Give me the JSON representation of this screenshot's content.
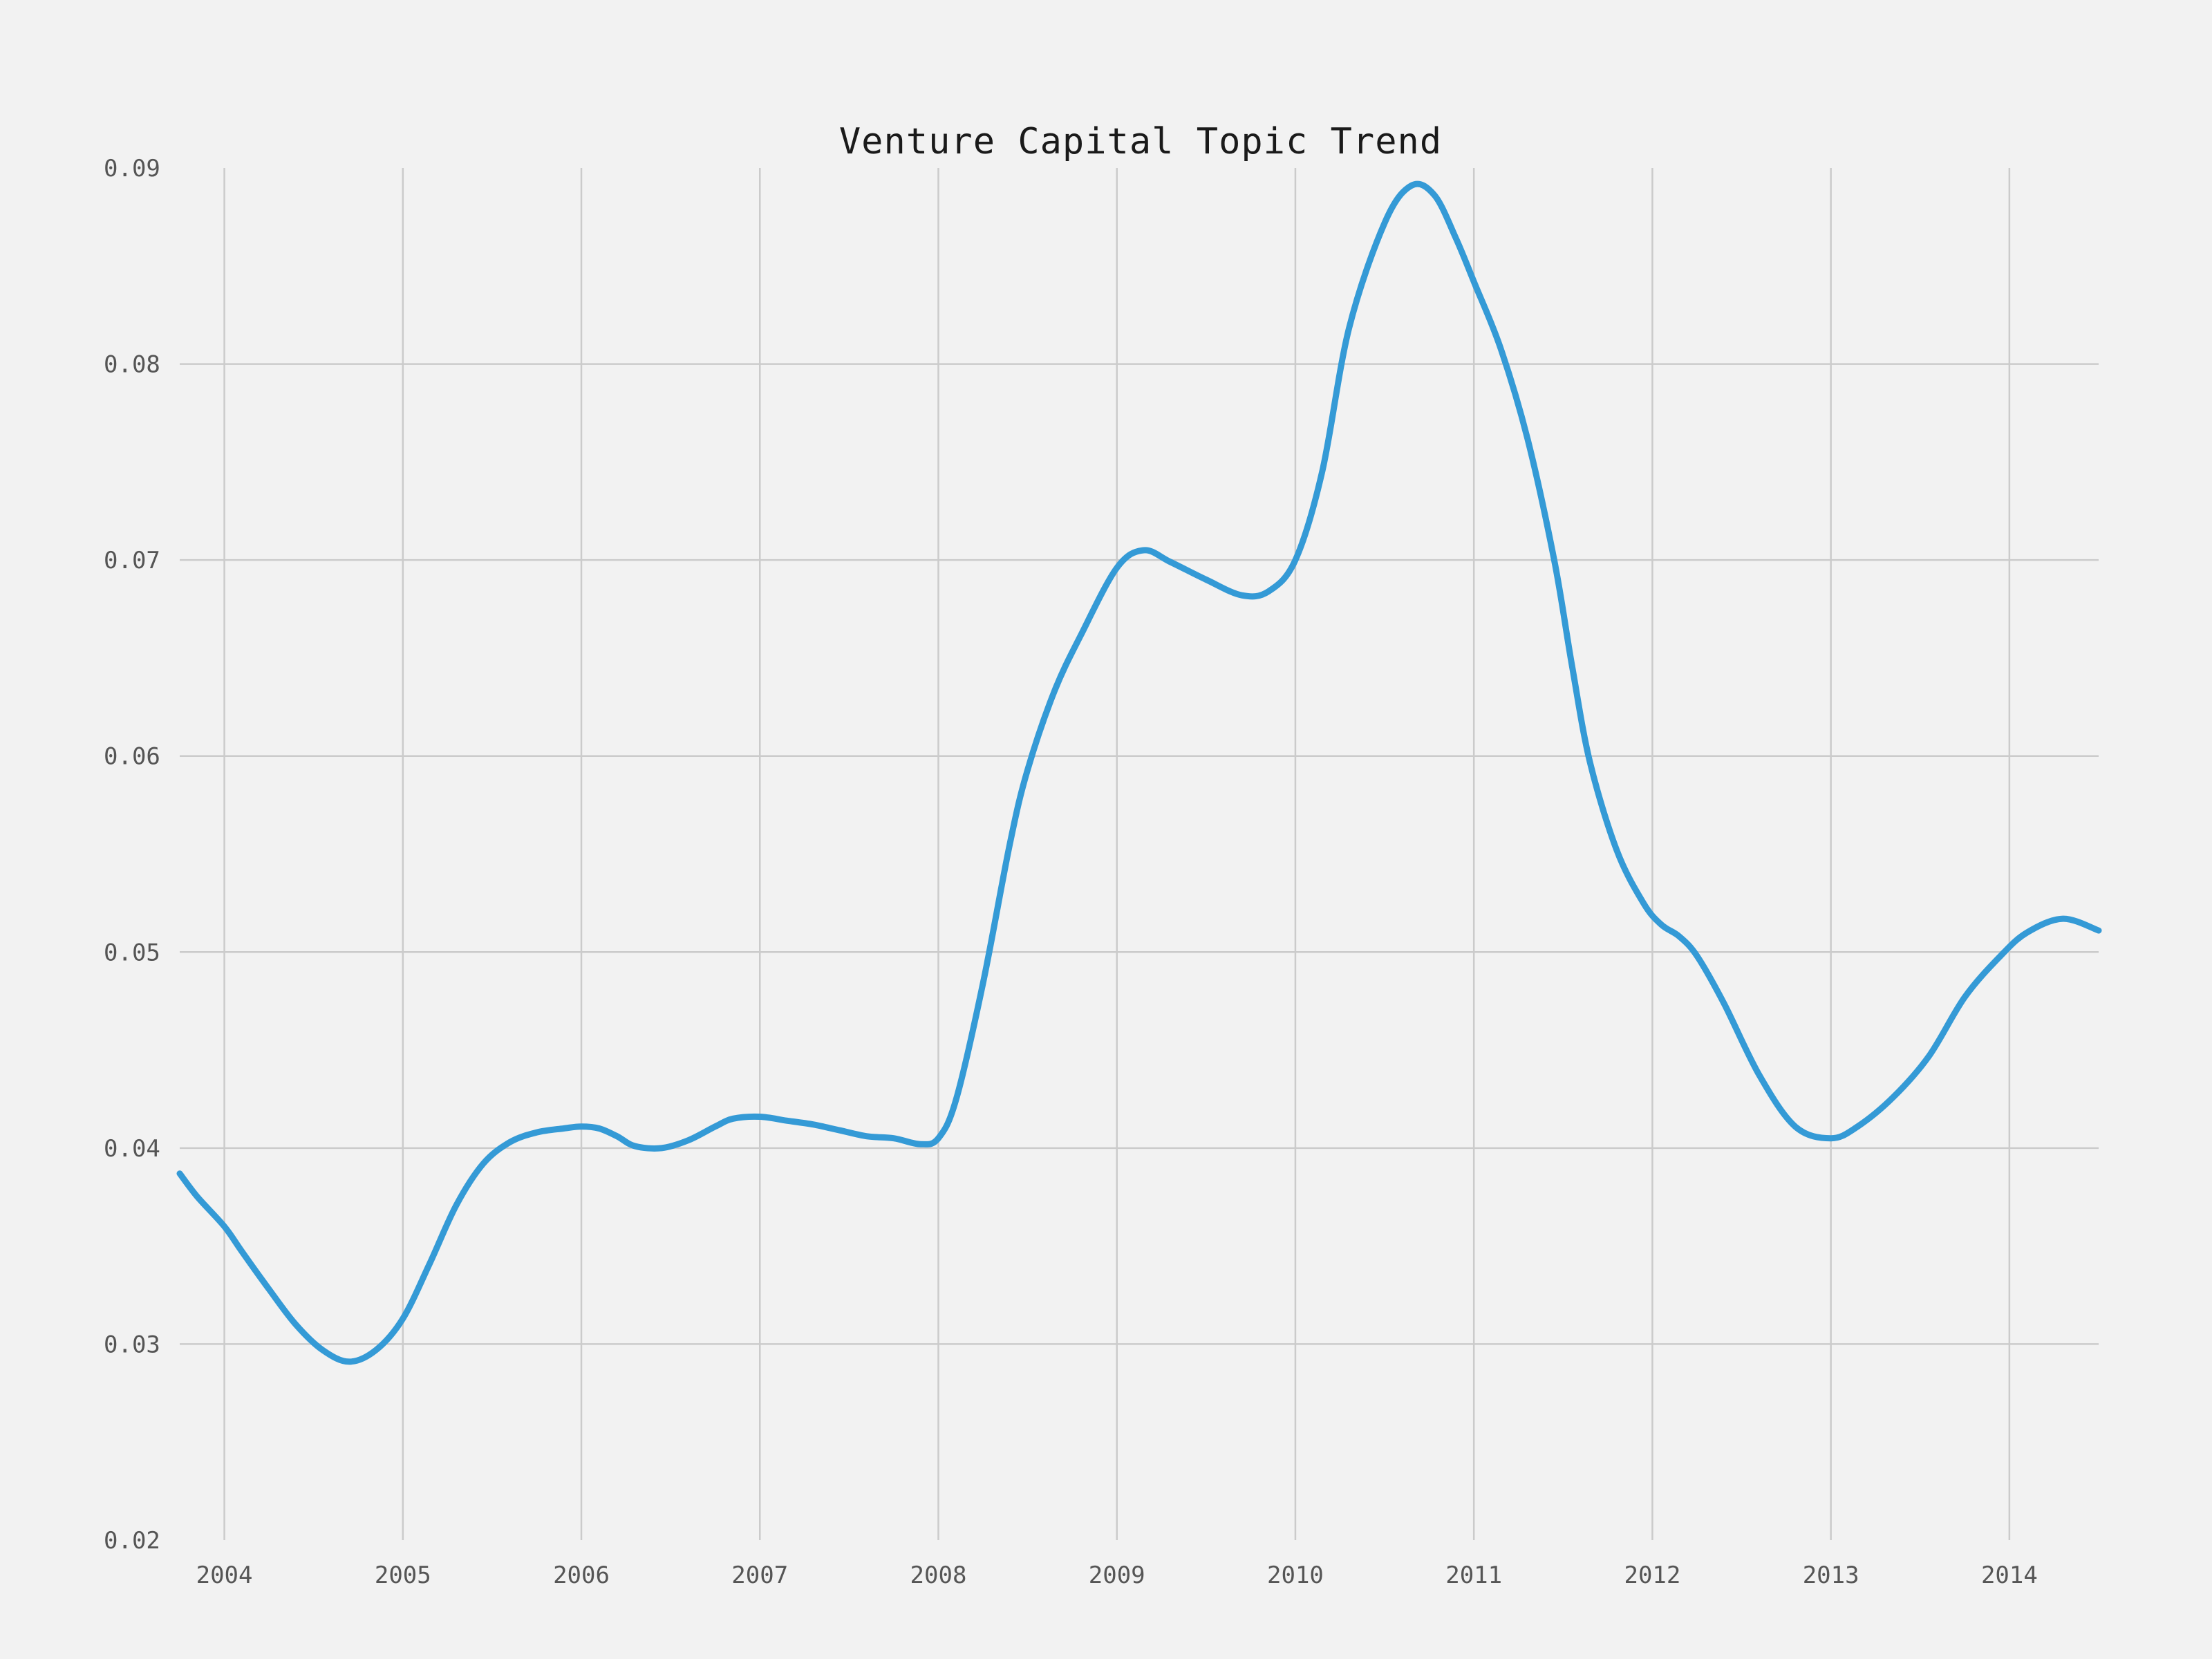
{
  "chart_data": {
    "type": "line",
    "title": "Venture Capital Topic Trend",
    "xlabel": "",
    "ylabel": "",
    "xlim": [
      2003.75,
      2014.5
    ],
    "ylim": [
      0.02,
      0.09
    ],
    "x_ticks": [
      "2004",
      "2005",
      "2006",
      "2007",
      "2008",
      "2009",
      "2010",
      "2011",
      "2012",
      "2013",
      "2014"
    ],
    "y_ticks": [
      "0.02",
      "0.03",
      "0.04",
      "0.05",
      "0.06",
      "0.07",
      "0.08",
      "0.09"
    ],
    "grid": true,
    "legend": "none",
    "line_color": "#349ad6",
    "grid_color": "#cbcbcb",
    "background_color": "#f2f2f2",
    "series": [
      {
        "x": [
          2003.75,
          2003.85,
          2004.0,
          2004.1,
          2004.25,
          2004.4,
          2004.55,
          2004.7,
          2004.85,
          2005.0,
          2005.15,
          2005.3,
          2005.45,
          2005.6,
          2005.75,
          2005.9,
          2006.0,
          2006.1,
          2006.2,
          2006.3,
          2006.45,
          2006.6,
          2006.75,
          2006.85,
          2007.0,
          2007.15,
          2007.3,
          2007.45,
          2007.6,
          2007.75,
          2007.9,
          2008.0,
          2008.1,
          2008.25,
          2008.4,
          2008.5,
          2008.65,
          2008.8,
          2009.0,
          2009.15,
          2009.3,
          2009.5,
          2009.7,
          2009.85,
          2010.0,
          2010.15,
          2010.3,
          2010.5,
          2010.65,
          2010.78,
          2010.9,
          2011.0,
          2011.15,
          2011.3,
          2011.45,
          2011.55,
          2011.65,
          2011.8,
          2011.95,
          2012.05,
          2012.15,
          2012.25,
          2012.4,
          2012.6,
          2012.8,
          2013.0,
          2013.15,
          2013.35,
          2013.55,
          2013.75,
          2013.95,
          2014.1,
          2014.3,
          2014.5
        ],
        "y": [
          0.0387,
          0.0375,
          0.036,
          0.0347,
          0.0328,
          0.031,
          0.0297,
          0.0291,
          0.0297,
          0.0313,
          0.0341,
          0.0371,
          0.0392,
          0.0403,
          0.0408,
          0.041,
          0.0411,
          0.041,
          0.0406,
          0.0401,
          0.04,
          0.0404,
          0.0411,
          0.0415,
          0.0416,
          0.0414,
          0.0412,
          0.0409,
          0.0406,
          0.0405,
          0.0402,
          0.0405,
          0.0425,
          0.0484,
          0.0555,
          0.0593,
          0.0633,
          0.0662,
          0.0696,
          0.0705,
          0.0699,
          0.069,
          0.0682,
          0.0684,
          0.07,
          0.0745,
          0.0818,
          0.0872,
          0.0891,
          0.0886,
          0.0864,
          0.0842,
          0.0808,
          0.0762,
          0.07,
          0.0646,
          0.0597,
          0.0552,
          0.0525,
          0.0514,
          0.0508,
          0.0498,
          0.0474,
          0.0437,
          0.0411,
          0.0405,
          0.0411,
          0.0426,
          0.0447,
          0.0477,
          0.0498,
          0.051,
          0.0517,
          0.0511
        ]
      }
    ]
  }
}
